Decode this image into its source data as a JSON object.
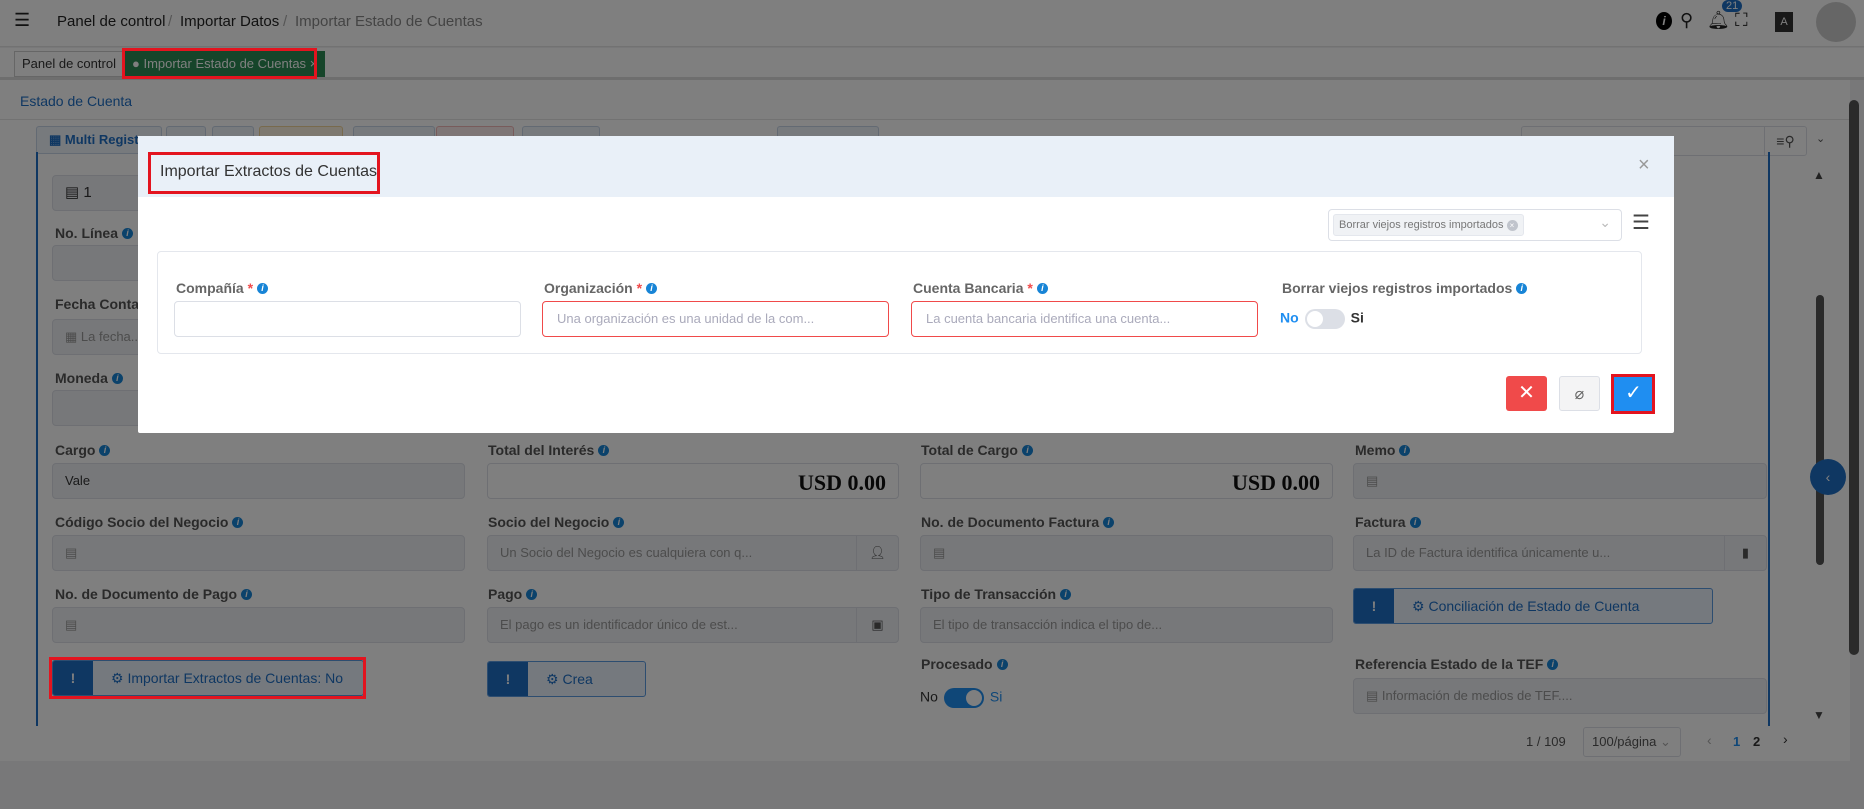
{
  "header": {
    "breadcrumb": [
      "Panel de control",
      "Importar Datos",
      "Importar Estado de Cuentas"
    ],
    "notification_count": "21",
    "translate_label": "A文"
  },
  "tabs": [
    {
      "label": "Panel de control"
    },
    {
      "label": "Importar Estado de Cuentas",
      "close": "×"
    }
  ],
  "window": {
    "sub_tab": "Estado de Cuenta",
    "multi_record": "Multi Registro"
  },
  "form": {
    "line_value": "1",
    "fields": {
      "no_linea": "No. Línea",
      "fecha_contable": "Fecha Contable",
      "fecha_placeholder": "La fecha...",
      "moneda": "Moneda",
      "cargo": "Cargo",
      "cargo_value": "Vale",
      "total_interes": "Total del Interés",
      "total_interes_value": "USD 0.00",
      "total_cargo": "Total de Cargo",
      "total_cargo_value": "USD 0.00",
      "memo": "Memo",
      "codigo_socio": "Código Socio del Negocio",
      "socio": "Socio del Negocio",
      "socio_placeholder": "Un Socio del Negocio es cualquiera con q...",
      "no_doc_factura": "No. de Documento Factura",
      "factura": "Factura",
      "factura_placeholder": "La ID de Factura identifica únicamente u...",
      "no_doc_pago": "No. de Documento de Pago",
      "pago": "Pago",
      "pago_placeholder": "El pago es un identificador único de est...",
      "tipo_transaccion": "Tipo de Transacción",
      "tipo_placeholder": "El tipo de transacción indica el tipo de...",
      "procesado": "Procesado",
      "no": "No",
      "si": "Si",
      "referencia_tef": "Referencia Estado de la TEF",
      "tef_placeholder": "Información de medios de TEF...."
    },
    "buttons": {
      "importar": "Importar Extractos de Cuentas: No",
      "crea_pago": "Crea Pago",
      "conciliacion": "Conciliación de Estado de Cuenta Bancario"
    }
  },
  "pagination": {
    "record": "1 / 109",
    "page_size": "100/página",
    "pages": [
      "1",
      "2"
    ],
    "current_page": "1"
  },
  "modal": {
    "title": "Importar Extractos de Cuentas",
    "close": "×",
    "filter_tag": "Borrar viejos registros importados",
    "fields": {
      "compania": "Compañía",
      "organizacion": "Organización",
      "org_placeholder": "Una organización es una unidad de la com...",
      "cuenta": "Cuenta Bancaria",
      "cuenta_placeholder": "La cuenta bancaria identifica una cuenta...",
      "borrar": "Borrar viejos registros importados",
      "no": "No",
      "si": "Si",
      "required": "*"
    },
    "borrar_value": false
  },
  "colors": {
    "accent": "#1f6fc5",
    "active_tab": "#2d8a55",
    "danger": "#f04a4a",
    "confirm": "#1f8ef1",
    "highlight": "#e3141f"
  }
}
